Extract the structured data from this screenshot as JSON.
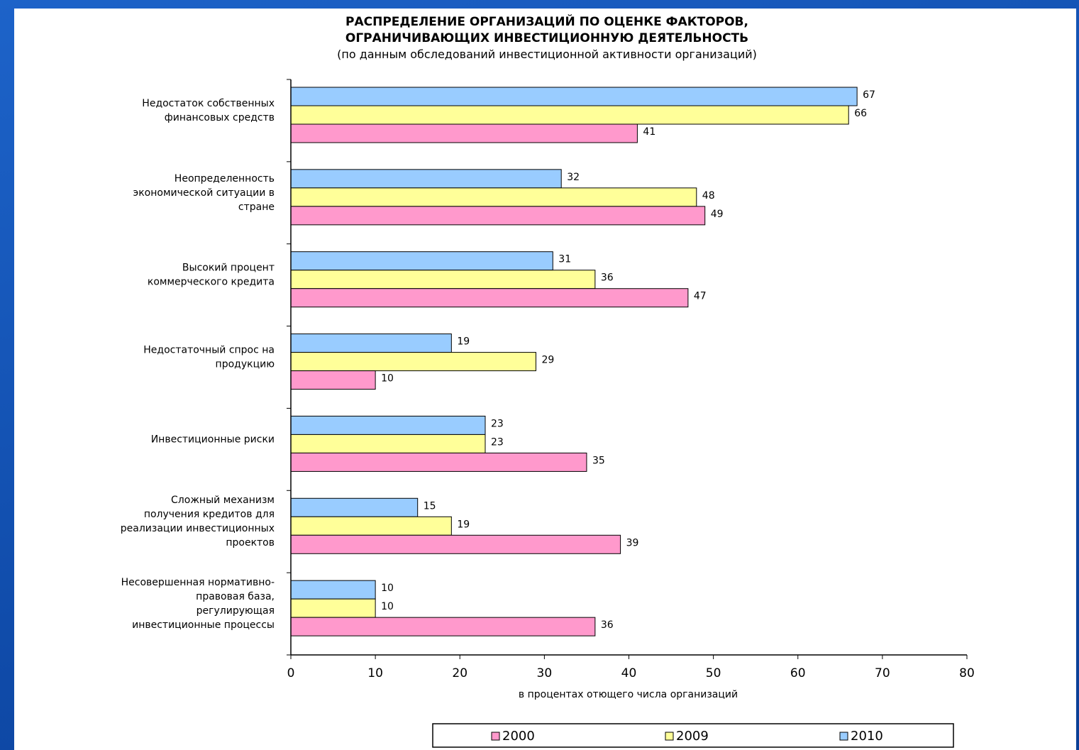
{
  "chart_data": {
    "type": "bar",
    "orientation": "horizontal",
    "title": "РАСПРЕДЕЛЕНИЕ ОРГАНИЗАЦИЙ ПО ОЦЕНКЕ ФАКТОРОВ, ОГРАНИЧИВАЮЩИХ ИНВЕСТИЦИОННУЮ ДЕЯТЕЛЬНОСТЬ",
    "title_lines": [
      "РАСПРЕДЕЛЕНИЕ ОРГАНИЗАЦИЙ ПО ОЦЕНКЕ ФАКТОРОВ,",
      "ОГРАНИЧИВАЮЩИХ ИНВЕСТИЦИОННУЮ ДЕЯТЕЛЬНОСТЬ"
    ],
    "subtitle": "(по данным обследований инвестиционной активности организаций)",
    "xlabel": "в процентах отющего числа организаций",
    "ylabel": "",
    "xlim": [
      0,
      80
    ],
    "xticks": [
      0,
      10,
      20,
      30,
      40,
      50,
      60,
      70,
      80
    ],
    "grid": false,
    "legend_position": "bottom",
    "categories": [
      [
        "Недостаток собственных",
        "финансовых средств"
      ],
      [
        "Неопределенность",
        "экономической ситуации в",
        "стране"
      ],
      [
        "Высокий процент",
        "коммерческого кредита"
      ],
      [
        "Недостаточный спрос на",
        "продукцию"
      ],
      [
        "Инвестиционные риски"
      ],
      [
        "Сложный механизм",
        "получения кредитов для",
        "реализации инвестиционных",
        "проектов"
      ],
      [
        "Несовершенная нормативно-",
        "правовая база,",
        "регулирующая",
        "инвестиционные процессы"
      ]
    ],
    "series": [
      {
        "name": "2010",
        "color": "#99ccff",
        "values": [
          67,
          32,
          31,
          19,
          23,
          15,
          10
        ]
      },
      {
        "name": "2009",
        "color": "#ffff99",
        "values": [
          66,
          48,
          36,
          29,
          23,
          19,
          10
        ]
      },
      {
        "name": "2000",
        "color": "#ff99cc",
        "values": [
          41,
          49,
          47,
          10,
          35,
          39,
          36
        ]
      }
    ],
    "legend_order": [
      "2000",
      "2009",
      "2010"
    ]
  }
}
